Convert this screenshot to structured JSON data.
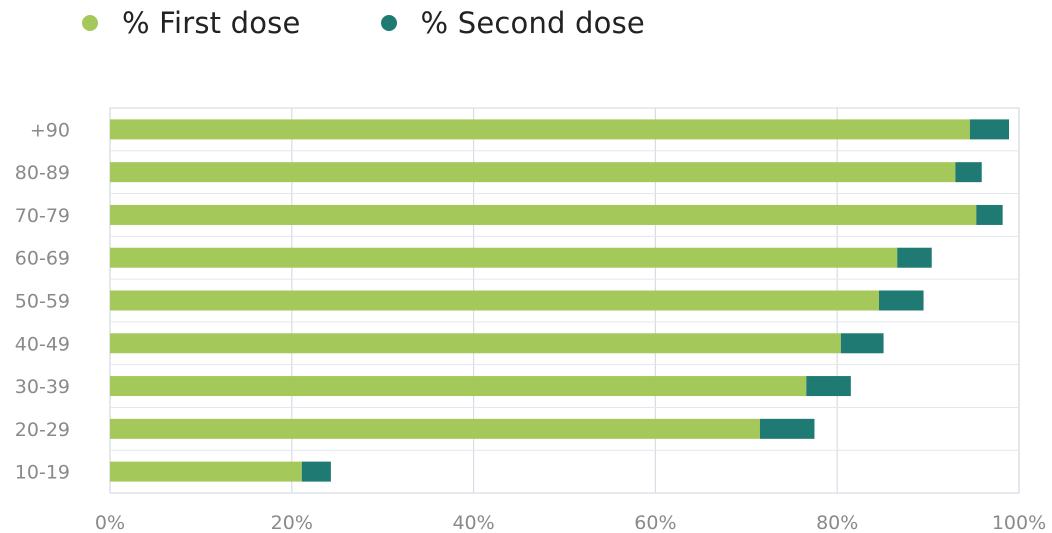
{
  "chart_data": {
    "type": "bar",
    "orientation": "horizontal",
    "stacked": true,
    "categories": [
      "+90",
      "80-89",
      "70-79",
      "60-69",
      "50-59",
      "40-49",
      "30-39",
      "20-29",
      "10-19"
    ],
    "series": [
      {
        "name": "% First dose",
        "color": "#a4c95a",
        "values": [
          94.6,
          93.0,
          95.3,
          86.6,
          84.6,
          80.4,
          76.6,
          71.5,
          21.1
        ]
      },
      {
        "name": "% Second dose",
        "color": "#1f7a74",
        "values": [
          4.3,
          2.9,
          2.9,
          3.8,
          4.9,
          4.7,
          4.9,
          6.0,
          3.2
        ]
      }
    ],
    "x_ticks": [
      "0%",
      "20%",
      "40%",
      "60%",
      "80%",
      "100%"
    ],
    "xlim": [
      0,
      100
    ],
    "grid": true,
    "legend_position": "top-left"
  }
}
